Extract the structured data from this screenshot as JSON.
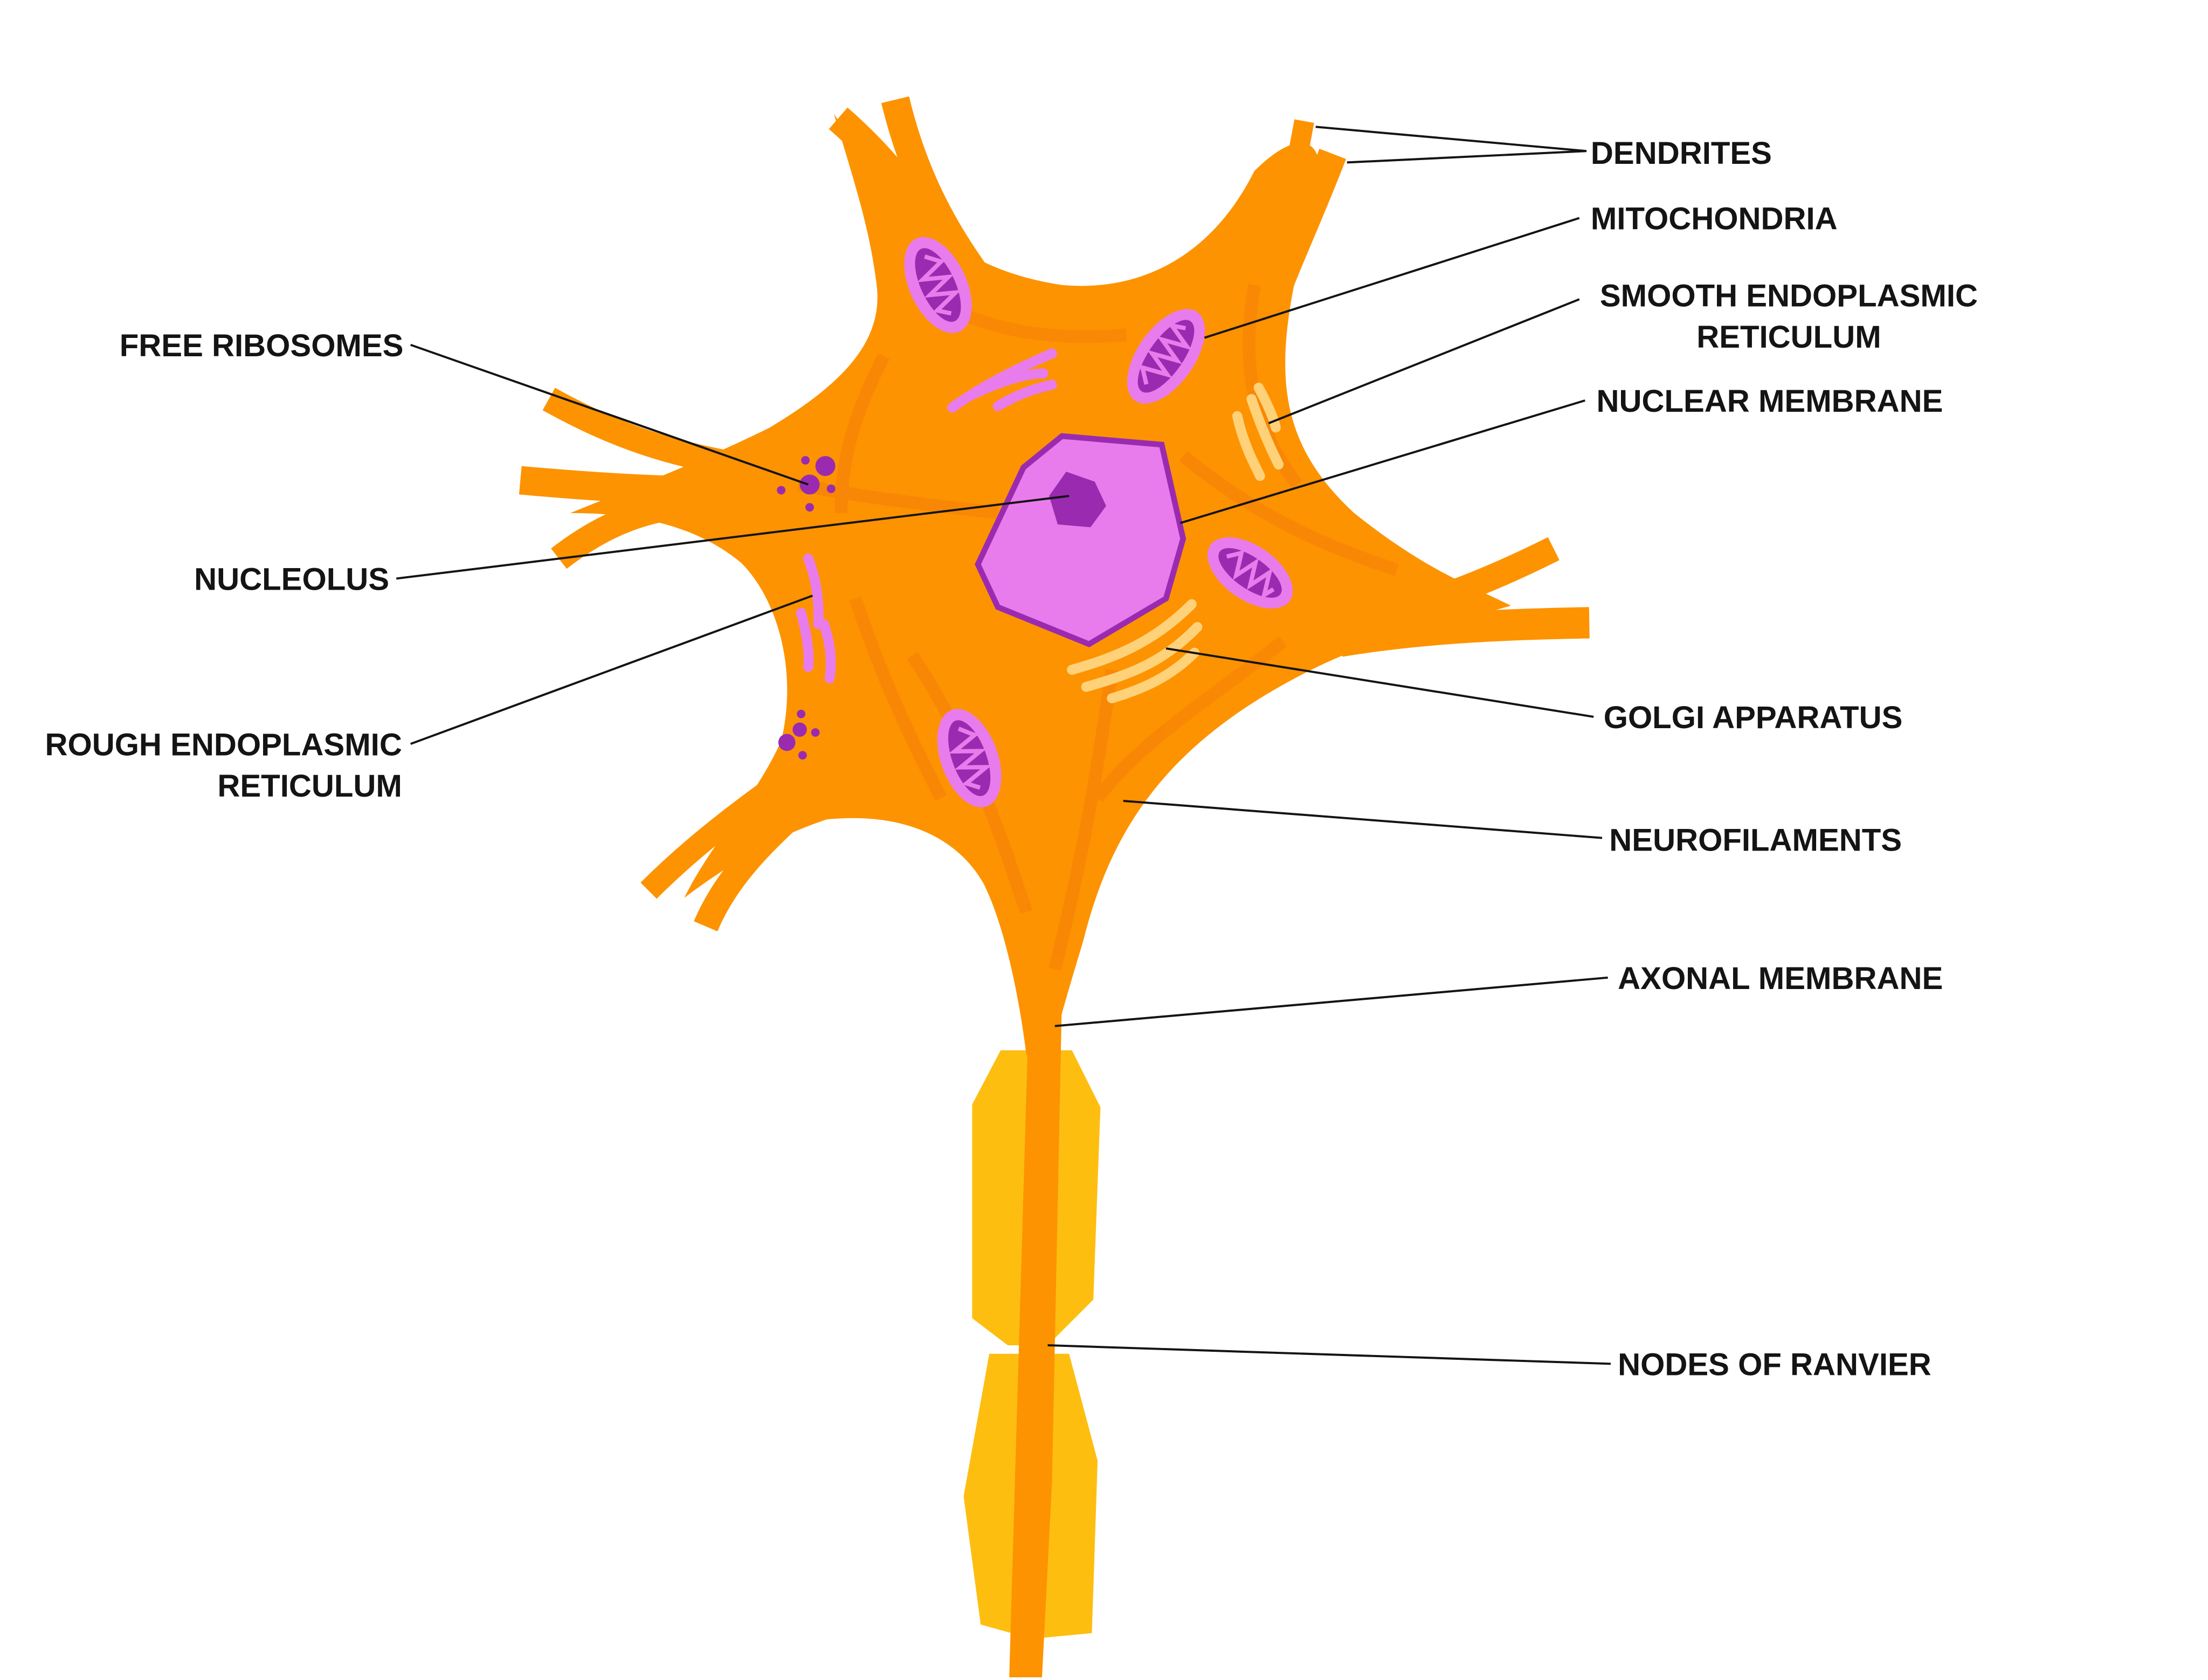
{
  "diagram": {
    "labels": {
      "dendrites": "DENDRITES",
      "mitochondria": "MITOCHONDRIA",
      "smooth_er_line1": "SMOOTH ENDOPLASMIC",
      "smooth_er_line2": "RETICULUM",
      "nuclear_membrane": "NUCLEAR MEMBRANE",
      "free_ribosomes": "FREE RIBOSOMES",
      "nucleolus": "NUCLEOLUS",
      "rough_er_line1": "ROUGH ENDOPLASMIC",
      "rough_er_line2": "RETICULUM",
      "golgi_apparatus": "GOLGI APPARATUS",
      "neurofilaments": "NEUROFILAMENTS",
      "axonal_membrane": "AXONAL MEMBRANE",
      "nodes_of_ranvier": "NODES OF RANVIER"
    },
    "colors": {
      "cell_body": "#FD9300",
      "cell_fiber": "#F57F0A",
      "myelin": "#FDBE10",
      "nucleus": "#E87CEC",
      "nucleus_edge": "#9A2BB0",
      "organelle_dark": "#9A2BB0",
      "organelle_light": "#E87CEC",
      "smooth_er": "#FFD27A",
      "leader_line": "#141414"
    }
  }
}
